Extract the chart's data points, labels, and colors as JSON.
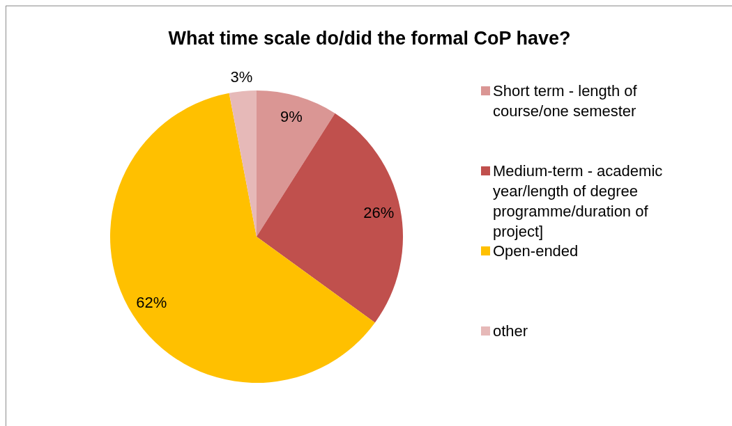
{
  "chart_data": {
    "type": "pie",
    "title": "What time scale do/did the formal CoP have?",
    "categories": [
      "Short term - length of course/one semester",
      "Medium-term - academic year/length of degree programme/duration of project]",
      "Open-ended",
      "other"
    ],
    "values": [
      9,
      26,
      62,
      3
    ],
    "colors": [
      "#da9694",
      "#c0504d",
      "#ffc000",
      "#e6b9b8"
    ],
    "value_labels": [
      "9%",
      "26%",
      "62%",
      "3%"
    ],
    "legend": "right"
  }
}
